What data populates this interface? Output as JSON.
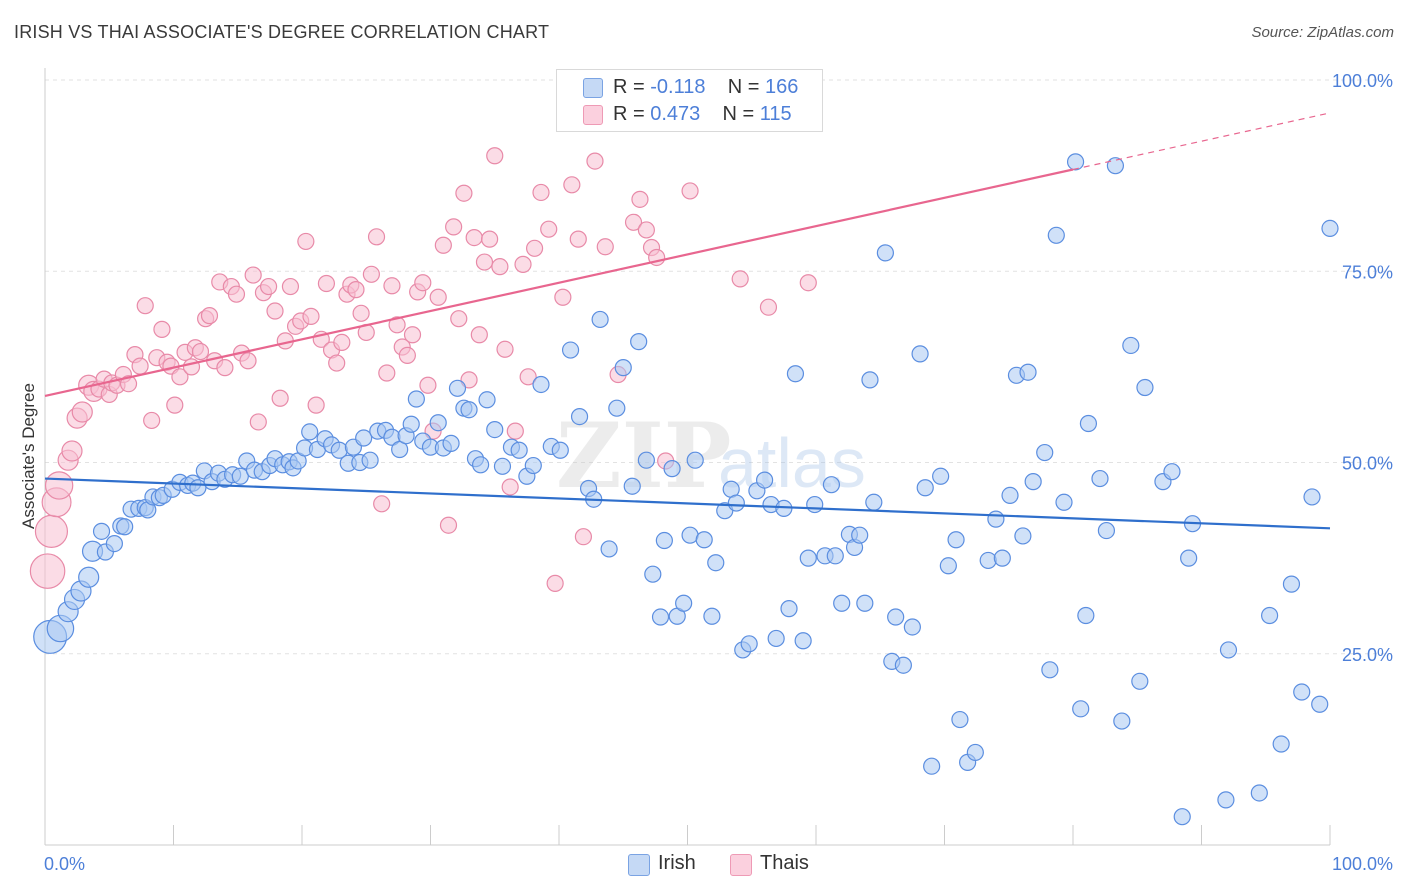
{
  "header": {
    "title": "IRISH VS THAI ASSOCIATE'S DEGREE CORRELATION CHART",
    "source": "Source: ZipAtlas.com"
  },
  "legend": {
    "irish": {
      "r_label": "R = ",
      "r_value": "-0.118",
      "n_label": "N = ",
      "n_value": "166"
    },
    "thais": {
      "r_label": "R = ",
      "r_value": "0.473",
      "n_label": "N = ",
      "n_value": "115"
    }
  },
  "bottom_legend": {
    "irish": "Irish",
    "thais": "Thais"
  },
  "colors": {
    "irish_fill": "#aac8f2",
    "irish_stroke": "#5b8ee0",
    "irish_line": "#2f6fcc",
    "thais_fill": "#f8c0d2",
    "thais_stroke": "#e88aa8",
    "thais_line": "#e8668f",
    "axis_text": "#4d7fd8",
    "grid": "#e2e2e2"
  },
  "chart_data": {
    "type": "scatter",
    "title": "IRISH VS THAI ASSOCIATE'S DEGREE CORRELATION CHART",
    "xlabel": "",
    "ylabel": "Associate's Degree",
    "xlim": [
      0,
      100
    ],
    "ylim": [
      0,
      100
    ],
    "x_tick_labels": [
      "0.0%",
      "100.0%"
    ],
    "y_ticks": [
      25,
      50,
      75,
      100
    ],
    "y_tick_labels": [
      "25.0%",
      "50.0%",
      "75.0%",
      "100.0%"
    ],
    "watermark": {
      "zip": "ZIP",
      "atlas": "atlas"
    },
    "series": [
      {
        "name": "Irish",
        "trend": {
          "x": [
            0,
            100
          ],
          "y": [
            47.9,
            41.4
          ],
          "dashed_from": null
        },
        "points": [
          [
            0.4,
            27.2
          ],
          [
            1.2,
            28.3
          ],
          [
            1.8,
            30.5
          ],
          [
            2.3,
            32.1
          ],
          [
            2.8,
            33.2
          ],
          [
            3.4,
            35.0
          ],
          [
            3.7,
            38.4
          ],
          [
            4.4,
            41.0
          ],
          [
            4.7,
            38.3
          ],
          [
            5.4,
            39.4
          ],
          [
            5.9,
            41.7
          ],
          [
            6.2,
            41.6
          ],
          [
            6.7,
            43.9
          ],
          [
            7.3,
            44.0
          ],
          [
            7.8,
            44.1
          ],
          [
            8.0,
            43.8
          ],
          [
            8.4,
            45.5
          ],
          [
            8.9,
            45.4
          ],
          [
            9.2,
            45.7
          ],
          [
            9.9,
            46.5
          ],
          [
            10.5,
            47.4
          ],
          [
            11.1,
            47.0
          ],
          [
            11.5,
            47.3
          ],
          [
            11.9,
            46.7
          ],
          [
            12.4,
            48.9
          ],
          [
            13.0,
            47.5
          ],
          [
            13.5,
            48.6
          ],
          [
            14.0,
            47.8
          ],
          [
            14.6,
            48.4
          ],
          [
            15.2,
            48.2
          ],
          [
            15.7,
            50.2
          ],
          [
            16.3,
            49.0
          ],
          [
            16.9,
            48.8
          ],
          [
            17.5,
            49.6
          ],
          [
            17.9,
            50.5
          ],
          [
            18.5,
            49.7
          ],
          [
            19.0,
            50.1
          ],
          [
            19.3,
            49.3
          ],
          [
            19.7,
            50.2
          ],
          [
            20.2,
            51.9
          ],
          [
            20.6,
            54.0
          ],
          [
            21.2,
            51.7
          ],
          [
            21.8,
            53.1
          ],
          [
            22.3,
            52.3
          ],
          [
            22.9,
            51.6
          ],
          [
            23.6,
            49.9
          ],
          [
            24.0,
            52.0
          ],
          [
            24.5,
            50.0
          ],
          [
            24.8,
            53.2
          ],
          [
            25.3,
            50.3
          ],
          [
            25.9,
            54.1
          ],
          [
            26.5,
            54.2
          ],
          [
            27.0,
            53.3
          ],
          [
            27.6,
            51.7
          ],
          [
            28.1,
            53.5
          ],
          [
            28.5,
            55.0
          ],
          [
            28.9,
            58.3
          ],
          [
            29.4,
            52.8
          ],
          [
            30.0,
            52.0
          ],
          [
            30.6,
            55.2
          ],
          [
            31.0,
            51.9
          ],
          [
            31.6,
            52.5
          ],
          [
            32.1,
            59.7
          ],
          [
            32.6,
            57.1
          ],
          [
            33.0,
            56.9
          ],
          [
            33.5,
            50.5
          ],
          [
            33.9,
            49.7
          ],
          [
            34.4,
            58.2
          ],
          [
            35.0,
            54.3
          ],
          [
            35.6,
            49.5
          ],
          [
            36.3,
            52.0
          ],
          [
            36.9,
            51.6
          ],
          [
            37.5,
            48.2
          ],
          [
            38.0,
            49.6
          ],
          [
            38.6,
            60.2
          ],
          [
            39.4,
            52.1
          ],
          [
            40.1,
            51.6
          ],
          [
            40.9,
            64.7
          ],
          [
            41.6,
            56.0
          ],
          [
            42.3,
            46.6
          ],
          [
            42.7,
            45.2
          ],
          [
            43.2,
            68.7
          ],
          [
            43.9,
            38.7
          ],
          [
            44.5,
            57.1
          ],
          [
            45.0,
            62.4
          ],
          [
            45.7,
            46.9
          ],
          [
            46.2,
            65.8
          ],
          [
            46.8,
            50.3
          ],
          [
            47.3,
            35.4
          ],
          [
            47.9,
            29.8
          ],
          [
            48.2,
            39.8
          ],
          [
            48.8,
            49.2
          ],
          [
            49.2,
            29.9
          ],
          [
            49.7,
            31.6
          ],
          [
            50.2,
            40.5
          ],
          [
            50.6,
            50.3
          ],
          [
            51.3,
            39.9
          ],
          [
            51.9,
            29.9
          ],
          [
            52.2,
            36.9
          ],
          [
            52.9,
            43.7
          ],
          [
            53.4,
            46.5
          ],
          [
            53.8,
            44.7
          ],
          [
            54.3,
            25.5
          ],
          [
            54.8,
            26.3
          ],
          [
            55.4,
            46.3
          ],
          [
            56.0,
            47.7
          ],
          [
            56.5,
            44.5
          ],
          [
            56.9,
            27.0
          ],
          [
            57.5,
            44.0
          ],
          [
            57.9,
            30.9
          ],
          [
            58.4,
            61.6
          ],
          [
            59.0,
            26.7
          ],
          [
            59.4,
            37.5
          ],
          [
            59.9,
            44.5
          ],
          [
            60.7,
            37.8
          ],
          [
            61.2,
            47.1
          ],
          [
            61.5,
            37.8
          ],
          [
            62.0,
            31.6
          ],
          [
            62.6,
            40.6
          ],
          [
            63.0,
            38.9
          ],
          [
            63.4,
            40.5
          ],
          [
            63.8,
            31.6
          ],
          [
            64.2,
            60.8
          ],
          [
            64.5,
            44.8
          ],
          [
            65.4,
            77.4
          ],
          [
            65.9,
            24.0
          ],
          [
            66.2,
            29.8
          ],
          [
            66.8,
            23.5
          ],
          [
            67.5,
            28.5
          ],
          [
            68.1,
            64.2
          ],
          [
            68.5,
            46.7
          ],
          [
            69.0,
            10.3
          ],
          [
            69.7,
            48.2
          ],
          [
            70.3,
            36.5
          ],
          [
            70.9,
            39.9
          ],
          [
            71.2,
            16.4
          ],
          [
            71.8,
            10.8
          ],
          [
            72.4,
            12.1
          ],
          [
            73.4,
            37.2
          ],
          [
            74.0,
            42.6
          ],
          [
            74.5,
            37.5
          ],
          [
            75.1,
            45.7
          ],
          [
            75.6,
            61.4
          ],
          [
            76.1,
            40.4
          ],
          [
            76.5,
            61.8
          ],
          [
            76.9,
            47.5
          ],
          [
            77.8,
            51.3
          ],
          [
            78.2,
            22.9
          ],
          [
            78.7,
            79.7
          ],
          [
            79.3,
            44.8
          ],
          [
            80.2,
            89.3
          ],
          [
            80.6,
            17.8
          ],
          [
            81.0,
            30.0
          ],
          [
            81.2,
            55.1
          ],
          [
            82.1,
            47.9
          ],
          [
            82.6,
            41.1
          ],
          [
            83.3,
            88.8
          ],
          [
            83.8,
            16.2
          ],
          [
            84.5,
            65.3
          ],
          [
            85.2,
            21.4
          ],
          [
            85.6,
            59.8
          ],
          [
            87.0,
            47.5
          ],
          [
            87.7,
            48.8
          ],
          [
            88.5,
            3.7
          ],
          [
            89.0,
            37.5
          ],
          [
            89.3,
            42.0
          ],
          [
            91.9,
            5.9
          ],
          [
            92.1,
            25.5
          ],
          [
            94.5,
            6.8
          ],
          [
            95.3,
            30.0
          ],
          [
            96.2,
            13.2
          ],
          [
            97.0,
            34.1
          ],
          [
            97.8,
            20.0
          ],
          [
            98.6,
            45.5
          ],
          [
            99.2,
            18.4
          ],
          [
            100.0,
            80.6
          ]
        ]
      },
      {
        "name": "Thais",
        "trend": {
          "x": [
            0,
            100
          ],
          "y": [
            58.7,
            95.7
          ],
          "dashed_from": 80
        },
        "points": [
          [
            0.2,
            35.8
          ],
          [
            0.5,
            41.0
          ],
          [
            0.9,
            44.8
          ],
          [
            1.1,
            47.0
          ],
          [
            1.8,
            50.3
          ],
          [
            2.1,
            51.5
          ],
          [
            2.5,
            55.8
          ],
          [
            2.9,
            56.6
          ],
          [
            3.4,
            60.1
          ],
          [
            3.8,
            59.3
          ],
          [
            4.2,
            59.6
          ],
          [
            4.6,
            60.9
          ],
          [
            5.0,
            58.9
          ],
          [
            5.2,
            60.4
          ],
          [
            5.6,
            60.1
          ],
          [
            6.1,
            61.5
          ],
          [
            6.5,
            60.3
          ],
          [
            7.0,
            64.1
          ],
          [
            7.4,
            62.6
          ],
          [
            7.8,
            70.5
          ],
          [
            8.3,
            55.5
          ],
          [
            8.7,
            63.7
          ],
          [
            9.1,
            67.4
          ],
          [
            9.5,
            63.1
          ],
          [
            9.8,
            62.6
          ],
          [
            10.1,
            57.5
          ],
          [
            10.5,
            61.2
          ],
          [
            10.9,
            64.4
          ],
          [
            11.4,
            62.5
          ],
          [
            11.7,
            65.0
          ],
          [
            12.1,
            64.5
          ],
          [
            12.5,
            68.8
          ],
          [
            12.8,
            69.2
          ],
          [
            13.2,
            63.3
          ],
          [
            13.6,
            73.6
          ],
          [
            14.0,
            62.4
          ],
          [
            14.5,
            73.0
          ],
          [
            14.9,
            72.0
          ],
          [
            15.3,
            64.3
          ],
          [
            15.8,
            63.3
          ],
          [
            16.2,
            74.5
          ],
          [
            16.6,
            55.3
          ],
          [
            17.0,
            72.2
          ],
          [
            17.4,
            73.0
          ],
          [
            17.9,
            69.8
          ],
          [
            18.3,
            58.4
          ],
          [
            18.7,
            65.9
          ],
          [
            19.1,
            73.0
          ],
          [
            19.5,
            67.8
          ],
          [
            19.9,
            68.5
          ],
          [
            20.3,
            78.9
          ],
          [
            20.7,
            69.1
          ],
          [
            21.1,
            57.5
          ],
          [
            21.5,
            66.1
          ],
          [
            21.9,
            73.4
          ],
          [
            22.3,
            64.7
          ],
          [
            22.7,
            63.0
          ],
          [
            23.1,
            65.7
          ],
          [
            23.5,
            72.0
          ],
          [
            23.8,
            73.2
          ],
          [
            24.2,
            72.6
          ],
          [
            24.6,
            69.5
          ],
          [
            25.0,
            67.0
          ],
          [
            25.4,
            74.6
          ],
          [
            25.8,
            79.5
          ],
          [
            26.2,
            44.6
          ],
          [
            26.6,
            61.7
          ],
          [
            27.0,
            73.1
          ],
          [
            27.4,
            68.0
          ],
          [
            27.8,
            65.1
          ],
          [
            28.2,
            64.0
          ],
          [
            28.6,
            66.7
          ],
          [
            29.0,
            72.3
          ],
          [
            29.4,
            73.5
          ],
          [
            29.8,
            60.1
          ],
          [
            30.2,
            54.1
          ],
          [
            30.6,
            71.6
          ],
          [
            31.0,
            78.4
          ],
          [
            31.4,
            41.8
          ],
          [
            31.8,
            80.8
          ],
          [
            32.2,
            68.8
          ],
          [
            32.6,
            85.2
          ],
          [
            33.0,
            60.8
          ],
          [
            33.4,
            79.4
          ],
          [
            33.8,
            66.7
          ],
          [
            34.2,
            76.2
          ],
          [
            34.6,
            79.2
          ],
          [
            35.0,
            90.1
          ],
          [
            35.4,
            75.6
          ],
          [
            35.8,
            64.8
          ],
          [
            36.2,
            46.8
          ],
          [
            36.6,
            54.1
          ],
          [
            37.2,
            75.9
          ],
          [
            37.6,
            61.2
          ],
          [
            38.1,
            78.0
          ],
          [
            38.6,
            85.3
          ],
          [
            39.2,
            80.5
          ],
          [
            39.7,
            34.2
          ],
          [
            40.3,
            71.6
          ],
          [
            41.0,
            86.3
          ],
          [
            41.5,
            79.2
          ],
          [
            41.9,
            40.3
          ],
          [
            42.8,
            89.4
          ],
          [
            43.6,
            78.2
          ],
          [
            44.6,
            61.5
          ],
          [
            45.8,
            81.4
          ],
          [
            46.3,
            84.4
          ],
          [
            46.8,
            80.4
          ],
          [
            47.2,
            78.1
          ],
          [
            47.6,
            76.8
          ],
          [
            48.3,
            50.2
          ],
          [
            50.2,
            85.5
          ],
          [
            54.1,
            74.0
          ],
          [
            56.3,
            70.3
          ],
          [
            59.4,
            73.5
          ]
        ]
      }
    ]
  }
}
